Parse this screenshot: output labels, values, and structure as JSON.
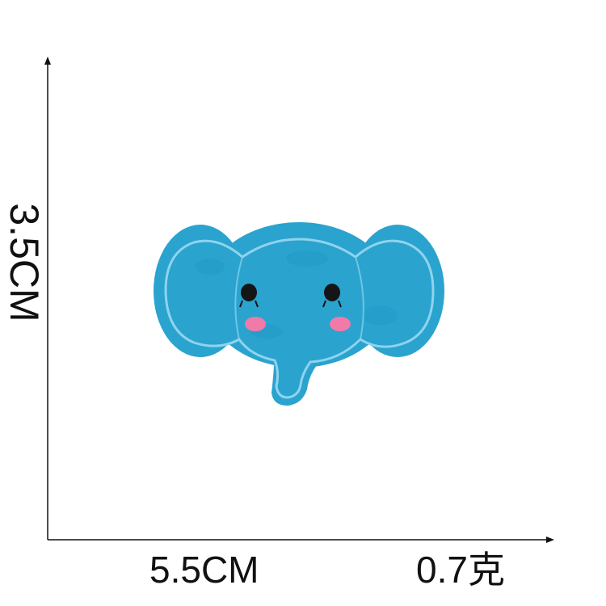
{
  "dimensions": {
    "height_label": "3.5CM",
    "width_label": "5.5CM",
    "weight_label": "0.7克"
  },
  "patch": {
    "subject": "elephant-head",
    "felt_color": "#2aa3cf",
    "stitch_color": "#8fd3ee",
    "eye_color": "#151515",
    "cheek_color": "#f07aa8"
  },
  "axis_color": "#111111"
}
